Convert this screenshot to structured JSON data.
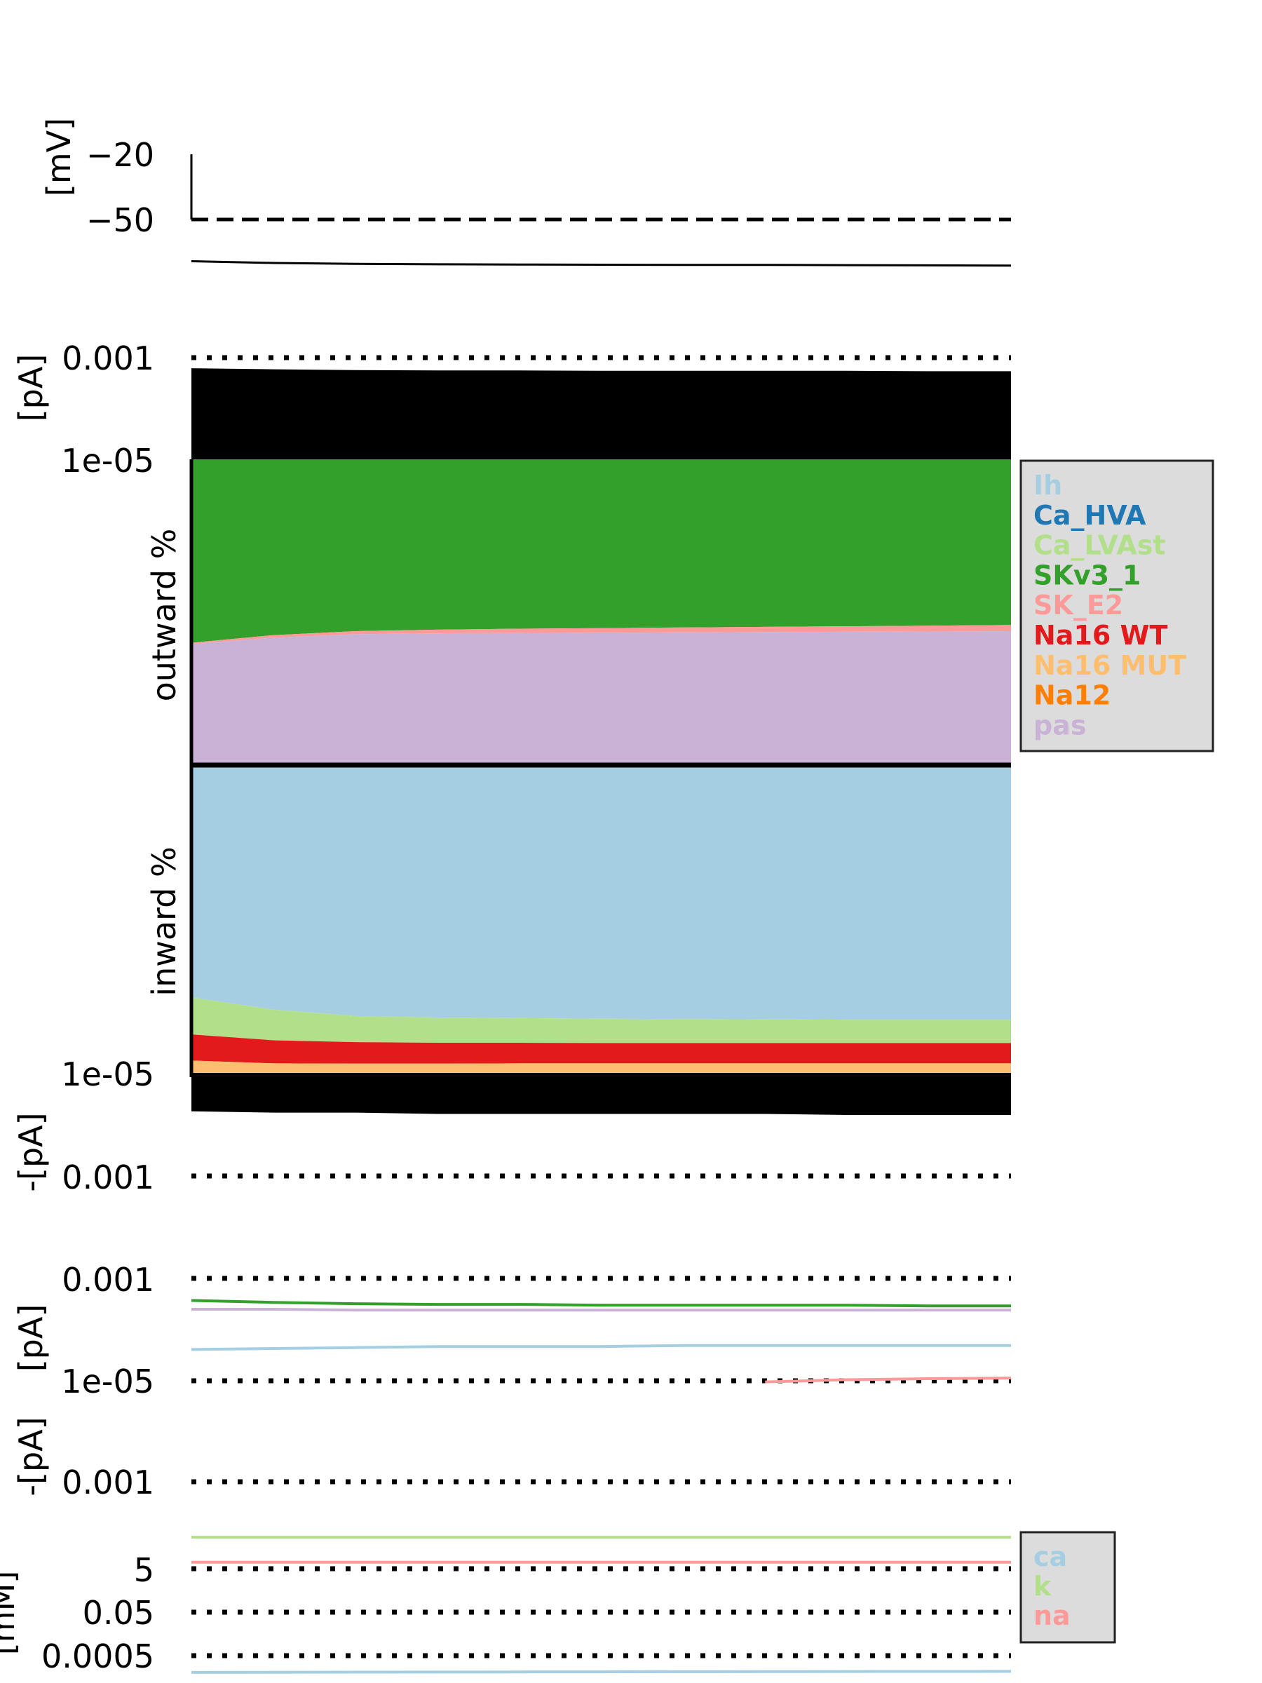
{
  "chart_data": [
    {
      "type": "line",
      "panel": "voltage",
      "ylabel": "[mV]",
      "yticks": [
        -20,
        -50
      ],
      "ylim": [
        -80,
        -20
      ],
      "threshold_line": {
        "value": -50,
        "style": "dashed"
      },
      "x": [
        0,
        0.1,
        0.2,
        0.3,
        0.4,
        0.5,
        0.6,
        0.7,
        0.8,
        0.9,
        1.0
      ],
      "series": [
        {
          "values": [
            -69.2,
            -70.0,
            -70.4,
            -70.6,
            -70.7,
            -70.8,
            -70.9,
            -70.9,
            -71.0,
            -71.1,
            -71.2
          ],
          "color": "#000000"
        }
      ]
    },
    {
      "type": "area",
      "panel": "currentscape",
      "outward_label": "outward %",
      "inward_label": "inward %",
      "top_axis": {
        "ylabel": "[pA]",
        "ticks": [
          "0.001",
          "1e-05"
        ]
      },
      "bottom_axis": {
        "ylabel": "-[pA]",
        "ticks": [
          "1e-05",
          "0.001"
        ]
      },
      "x": [
        0,
        0.1,
        0.2,
        0.3,
        0.4,
        0.5,
        0.6,
        0.7,
        0.8,
        0.9,
        1.0
      ],
      "outward_total_pA": [
        0.00062,
        0.00059,
        0.00057,
        0.00056,
        0.00056,
        0.00055,
        0.00055,
        0.00055,
        0.00055,
        0.00054,
        0.00054
      ],
      "inward_total_pA": [
        1.8e-06,
        1.7e-06,
        1.7e-06,
        1.6e-06,
        1.6e-06,
        1.6e-06,
        1.6e-06,
        1.6e-06,
        1.5e-06,
        1.5e-06,
        1.5e-06
      ],
      "outward_percent": [
        {
          "name": "SKv3_1",
          "color": "#33a02c",
          "values": [
            60.0,
            57.5,
            56.2,
            55.7,
            55.4,
            55.2,
            55.0,
            54.8,
            54.6,
            54.4,
            54.2
          ]
        },
        {
          "name": "SK_E2",
          "color": "#fb9a99",
          "values": [
            0.4,
            0.8,
            1.0,
            1.2,
            1.4,
            1.5,
            1.6,
            1.7,
            1.8,
            1.9,
            2.0
          ]
        },
        {
          "name": "pas",
          "color": "#cab2d6",
          "values": [
            39.6,
            41.7,
            42.8,
            43.1,
            43.2,
            43.3,
            43.4,
            43.5,
            43.6,
            43.7,
            43.8
          ]
        }
      ],
      "inward_percent": [
        {
          "name": "Ih",
          "color": "#a6cee3",
          "values": [
            75.5,
            79.4,
            81.5,
            82.0,
            82.2,
            82.4,
            82.5,
            82.6,
            82.7,
            82.7,
            82.7
          ]
        },
        {
          "name": "Ca_LVAst",
          "color": "#b2df8a",
          "values": [
            12.0,
            10.0,
            8.5,
            8.2,
            8.0,
            7.9,
            7.8,
            7.7,
            7.6,
            7.6,
            7.6
          ]
        },
        {
          "name": "Na16 WT",
          "color": "#e31a1c",
          "values": [
            8.5,
            7.5,
            7.0,
            6.8,
            6.7,
            6.6,
            6.6,
            6.6,
            6.6,
            6.6,
            6.6
          ]
        },
        {
          "name": "Na16 MUT",
          "color": "#fdbf6f",
          "values": [
            4.0,
            3.1,
            3.0,
            3.0,
            3.1,
            3.1,
            3.1,
            3.1,
            3.1,
            3.1,
            3.1
          ]
        }
      ],
      "legend": {
        "placement": "right",
        "items": [
          {
            "name": "Ih",
            "color": "#a6cee3"
          },
          {
            "name": "Ca_HVA",
            "color": "#1f78b4"
          },
          {
            "name": "Ca_LVAst",
            "color": "#b2df8a"
          },
          {
            "name": "SKv3_1",
            "color": "#33a02c"
          },
          {
            "name": "SK_E2",
            "color": "#fb9a99"
          },
          {
            "name": "Na16 WT",
            "color": "#e31a1c"
          },
          {
            "name": "Na16 MUT",
            "color": "#fdbf6f"
          },
          {
            "name": "Na12",
            "color": "#ff7f00"
          },
          {
            "name": "pas",
            "color": "#cab2d6"
          }
        ]
      }
    },
    {
      "type": "line",
      "panel": "currents",
      "yscale": "log",
      "top_axis": {
        "ylabel": "[pA]",
        "ticks": [
          "0.001",
          "1e-05"
        ]
      },
      "bottom_axis": {
        "ylabel": "-[pA]",
        "ticks": [
          "0.001"
        ]
      },
      "x": [
        0,
        0.1,
        0.2,
        0.3,
        0.4,
        0.5,
        0.6,
        0.7,
        0.8,
        0.9,
        1.0
      ],
      "series": [
        {
          "name": "SKv3_1",
          "color": "#33a02c",
          "sign": "outward",
          "values": [
            0.00037,
            0.00034,
            0.00032,
            0.00031,
            0.00031,
            0.0003,
            0.0003,
            0.0003,
            0.0003,
            0.00029,
            0.00029
          ]
        },
        {
          "name": "pas",
          "color": "#cab2d6",
          "sign": "outward",
          "values": [
            0.00025,
            0.00025,
            0.00024,
            0.00024,
            0.00024,
            0.00024,
            0.00024,
            0.00024,
            0.00024,
            0.00024,
            0.00024
          ]
        },
        {
          "name": "SK_E2",
          "color": "#fb9a99",
          "sign": "outward",
          "values": [
            null,
            null,
            null,
            null,
            null,
            null,
            null,
            9.5e-06,
            1.05e-05,
            1.1e-05,
            1.13e-05
          ]
        },
        {
          "name": "Ih",
          "color": "#a6cee3",
          "sign": "inward",
          "values": [
            2.4e-06,
            2.3e-06,
            2.2e-06,
            2.1e-06,
            2.1e-06,
            2.1e-06,
            2e-06,
            2e-06,
            2e-06,
            2e-06,
            2e-06
          ]
        }
      ]
    },
    {
      "type": "line",
      "panel": "concentrations",
      "yscale": "log",
      "ylabel": "[mM]",
      "yticks": [
        "5",
        "0.05",
        "0.0005"
      ],
      "x": [
        0,
        0.1,
        0.2,
        0.3,
        0.4,
        0.5,
        0.6,
        0.7,
        0.8,
        0.9,
        1.0
      ],
      "series": [
        {
          "name": "k",
          "color": "#b2df8a",
          "values": [
            140,
            140,
            140,
            140,
            140,
            140,
            140,
            140,
            140,
            140,
            140
          ]
        },
        {
          "name": "na",
          "color": "#fb9a99",
          "values": [
            10,
            10,
            10,
            10,
            10,
            10,
            10,
            10,
            10,
            10,
            10
          ]
        },
        {
          "name": "ca",
          "color": "#a6cee3",
          "values": [
            8.5e-05,
            8.6e-05,
            8.7e-05,
            8.8e-05,
            8.9e-05,
            9e-05,
            9.1e-05,
            9.2e-05,
            9.3e-05,
            9.4e-05,
            9.5e-05
          ]
        }
      ],
      "legend": {
        "placement": "right",
        "items": [
          {
            "name": "ca",
            "color": "#a6cee3"
          },
          {
            "name": "k",
            "color": "#b2df8a"
          },
          {
            "name": "na",
            "color": "#fb9a99"
          }
        ]
      }
    }
  ]
}
